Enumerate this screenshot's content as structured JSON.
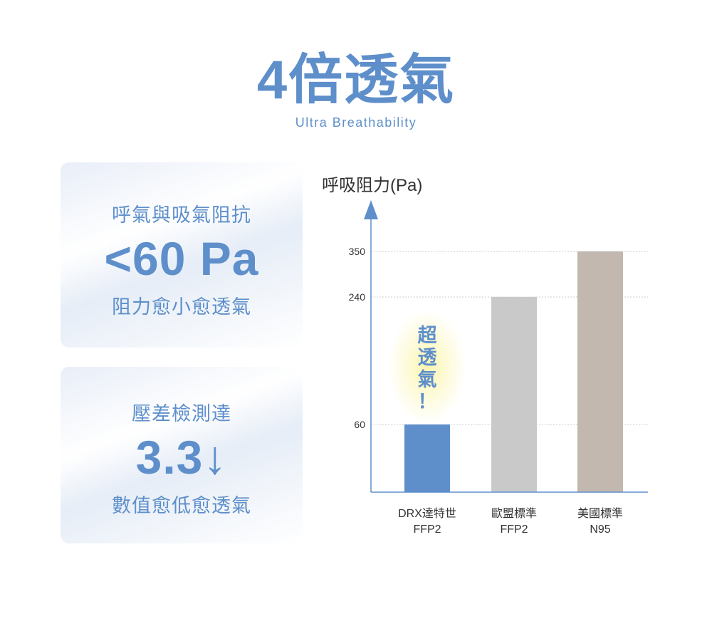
{
  "header": {
    "title": "4倍透氣",
    "subtitle": "Ultra Breathability"
  },
  "cards": [
    {
      "top": "呼氣與吸氣阻抗",
      "value": "<60 Pa",
      "bottom": "阻力愈小愈透氣"
    },
    {
      "top": "壓差檢測達",
      "value": "3.3↓",
      "bottom": "數值愈低愈透氣"
    }
  ],
  "colors": {
    "accent": "#5e8fcb",
    "bar_drx": "#5e8fcb",
    "bar_eu": "#c9c9c9",
    "bar_us": "#c2b8b0",
    "glow": "#fbf6b0"
  },
  "chart_data": {
    "type": "bar",
    "ylabel": "呼吸阻力(Pa)",
    "categories": [
      [
        "DRX達特世",
        "FFP2"
      ],
      [
        "歐盟標準",
        "FFP2"
      ],
      [
        "美國標準",
        "N95"
      ]
    ],
    "values": [
      60,
      240,
      350
    ],
    "yticks": [
      60,
      240,
      350
    ],
    "grid": true,
    "annotation": [
      "超",
      "透",
      "氣",
      "！"
    ]
  }
}
